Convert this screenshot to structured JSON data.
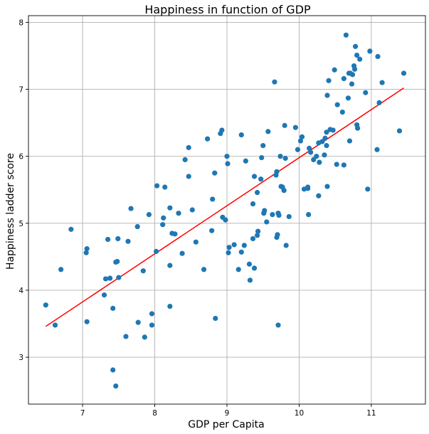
{
  "chart_data": {
    "type": "scatter",
    "title": "Happiness in function of GDP",
    "xlabel": "GDP per Capita",
    "ylabel": "Happiness ladder score",
    "xlim": [
      6.25,
      11.75
    ],
    "ylim": [
      2.3,
      8.1
    ],
    "xticks": [
      7,
      8,
      9,
      10,
      11
    ],
    "yticks": [
      3,
      4,
      5,
      6,
      7,
      8
    ],
    "grid": true,
    "colors": {
      "points": "#1f77b4",
      "fit": "#ff0000"
    },
    "series": [
      {
        "points": [
          [
            6.49,
            3.78
          ],
          [
            6.62,
            3.48
          ],
          [
            6.7,
            4.31
          ],
          [
            6.84,
            4.91
          ],
          [
            7.05,
            4.56
          ],
          [
            7.06,
            4.62
          ],
          [
            7.06,
            3.53
          ],
          [
            7.3,
            3.93
          ],
          [
            7.32,
            4.17
          ],
          [
            7.35,
            4.76
          ],
          [
            7.38,
            4.18
          ],
          [
            7.42,
            3.73
          ],
          [
            7.42,
            2.81
          ],
          [
            7.46,
            2.57
          ],
          [
            7.46,
            4.42
          ],
          [
            7.48,
            4.43
          ],
          [
            7.49,
            4.77
          ],
          [
            7.5,
            4.19
          ],
          [
            7.6,
            3.31
          ],
          [
            7.63,
            4.73
          ],
          [
            7.67,
            5.22
          ],
          [
            7.76,
            4.95
          ],
          [
            7.77,
            3.52
          ],
          [
            7.84,
            4.29
          ],
          [
            7.86,
            3.3
          ],
          [
            7.92,
            5.13
          ],
          [
            7.96,
            3.65
          ],
          [
            7.96,
            3.48
          ],
          [
            8.02,
            4.58
          ],
          [
            8.03,
            5.56
          ],
          [
            8.11,
            4.98
          ],
          [
            8.12,
            5.08
          ],
          [
            8.14,
            5.54
          ],
          [
            8.21,
            4.37
          ],
          [
            8.21,
            3.76
          ],
          [
            8.21,
            5.23
          ],
          [
            8.24,
            4.85
          ],
          [
            8.28,
            4.84
          ],
          [
            8.33,
            5.15
          ],
          [
            8.38,
            4.55
          ],
          [
            8.42,
            5.95
          ],
          [
            8.47,
            6.13
          ],
          [
            8.47,
            5.7
          ],
          [
            8.52,
            5.2
          ],
          [
            8.57,
            4.72
          ],
          [
            8.68,
            4.31
          ],
          [
            8.73,
            6.26
          ],
          [
            8.79,
            4.89
          ],
          [
            8.8,
            5.36
          ],
          [
            8.83,
            5.75
          ],
          [
            8.84,
            3.58
          ],
          [
            8.91,
            6.34
          ],
          [
            8.93,
            6.39
          ],
          [
            8.94,
            5.09
          ],
          [
            8.98,
            5.05
          ],
          [
            9.0,
            6.0
          ],
          [
            9.01,
            5.89
          ],
          [
            9.02,
            4.56
          ],
          [
            9.03,
            4.64
          ],
          [
            9.1,
            4.68
          ],
          [
            9.16,
            4.31
          ],
          [
            9.2,
            6.32
          ],
          [
            9.2,
            4.57
          ],
          [
            9.24,
            4.67
          ],
          [
            9.26,
            5.93
          ],
          [
            9.31,
            4.39
          ],
          [
            9.32,
            4.15
          ],
          [
            9.36,
            5.29
          ],
          [
            9.36,
            4.77
          ],
          [
            9.38,
            5.7
          ],
          [
            9.38,
            4.33
          ],
          [
            9.42,
            5.46
          ],
          [
            9.42,
            4.82
          ],
          [
            9.43,
            4.88
          ],
          [
            9.47,
            5.66
          ],
          [
            9.48,
            5.98
          ],
          [
            9.5,
            6.16
          ],
          [
            9.51,
            5.15
          ],
          [
            9.52,
            5.19
          ],
          [
            9.55,
            5.02
          ],
          [
            9.57,
            6.37
          ],
          [
            9.63,
            5.13
          ],
          [
            9.66,
            7.11
          ],
          [
            9.68,
            5.72
          ],
          [
            9.69,
            5.77
          ],
          [
            9.69,
            4.79
          ],
          [
            9.7,
            4.83
          ],
          [
            9.71,
            3.48
          ],
          [
            9.71,
            5.15
          ],
          [
            9.72,
            5.12
          ],
          [
            9.74,
            6.0
          ],
          [
            9.75,
            5.55
          ],
          [
            9.77,
            5.54
          ],
          [
            9.79,
            5.49
          ],
          [
            9.8,
            6.46
          ],
          [
            9.81,
            5.97
          ],
          [
            9.82,
            4.67
          ],
          [
            9.86,
            5.1
          ],
          [
            9.95,
            6.43
          ],
          [
            9.98,
            6.1
          ],
          [
            10.02,
            6.23
          ],
          [
            10.04,
            6.29
          ],
          [
            10.07,
            5.51
          ],
          [
            10.12,
            5.52
          ],
          [
            10.12,
            5.54
          ],
          [
            10.13,
            5.13
          ],
          [
            10.14,
            6.12
          ],
          [
            10.16,
            6.06
          ],
          [
            10.2,
            5.95
          ],
          [
            10.24,
            6.0
          ],
          [
            10.27,
            5.41
          ],
          [
            10.27,
            6.2
          ],
          [
            10.28,
            5.91
          ],
          [
            10.32,
            6.22
          ],
          [
            10.35,
            6.02
          ],
          [
            10.36,
            6.27
          ],
          [
            10.38,
            6.36
          ],
          [
            10.38,
            6.16
          ],
          [
            10.39,
            5.55
          ],
          [
            10.39,
            6.91
          ],
          [
            10.41,
            7.13
          ],
          [
            10.43,
            6.4
          ],
          [
            10.47,
            6.39
          ],
          [
            10.49,
            7.29
          ],
          [
            10.52,
            5.88
          ],
          [
            10.53,
            6.77
          ],
          [
            10.6,
            6.66
          ],
          [
            10.62,
            7.16
          ],
          [
            10.62,
            5.87
          ],
          [
            10.65,
            7.81
          ],
          [
            10.68,
            6.87
          ],
          [
            10.69,
            7.24
          ],
          [
            10.7,
            6.23
          ],
          [
            10.71,
            7.24
          ],
          [
            10.73,
            7.08
          ],
          [
            10.74,
            7.22
          ],
          [
            10.76,
            7.35
          ],
          [
            10.77,
            7.3
          ],
          [
            10.78,
            7.64
          ],
          [
            10.8,
            7.51
          ],
          [
            10.8,
            6.47
          ],
          [
            10.81,
            6.42
          ],
          [
            10.84,
            7.45
          ],
          [
            10.92,
            6.95
          ],
          [
            10.95,
            5.51
          ],
          [
            10.98,
            7.57
          ],
          [
            11.08,
            6.1
          ],
          [
            11.09,
            7.49
          ],
          [
            11.11,
            6.8
          ],
          [
            11.15,
            7.1
          ],
          [
            11.39,
            6.38
          ],
          [
            11.45,
            7.24
          ]
        ]
      }
    ],
    "fit_line": {
      "x": [
        6.49,
        11.45
      ],
      "y": [
        3.46,
        7.02
      ]
    }
  }
}
